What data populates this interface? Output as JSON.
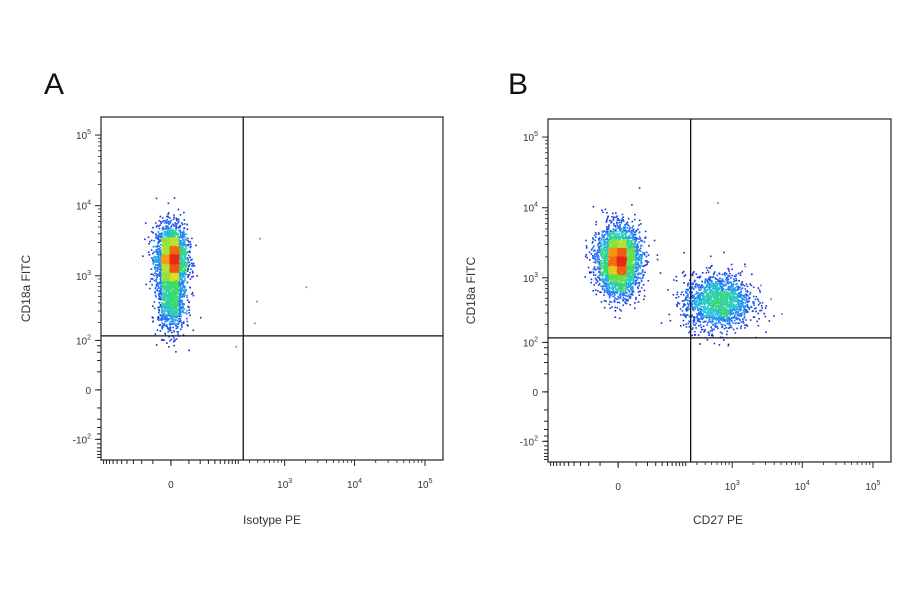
{
  "chart_data": [
    {
      "type": "scatter",
      "panel": "A",
      "title": "",
      "xlabel": "Isotype PE",
      "ylabel": "CD18a FITC",
      "x_ticks": [
        {
          "base": "0",
          "exp": ""
        },
        {
          "base": "10",
          "exp": "3"
        },
        {
          "base": "10",
          "exp": "4"
        },
        {
          "base": "10",
          "exp": "5"
        }
      ],
      "y_ticks": [
        {
          "base": "-10",
          "exp": "2"
        },
        {
          "base": "0",
          "exp": ""
        },
        {
          "base": "10",
          "exp": "2"
        },
        {
          "base": "10",
          "exp": "3"
        },
        {
          "base": "10",
          "exp": "4"
        },
        {
          "base": "10",
          "exp": "5"
        }
      ],
      "scale": "biexponential",
      "gate": {
        "x": 240,
        "y": 120
      },
      "populations": [
        {
          "x": 0,
          "y": 1800,
          "spread_x": 0.25,
          "spread_y": 0.55,
          "count": 2600
        },
        {
          "x": 0,
          "y": 400,
          "spread_x": 0.22,
          "spread_y": 0.5,
          "count": 900
        }
      ],
      "outliers": [
        [
          420,
          3500
        ],
        [
          380,
          430
        ],
        [
          2000,
          700
        ],
        [
          350,
          200
        ],
        [
          180,
          80
        ]
      ]
    },
    {
      "type": "scatter",
      "panel": "B",
      "title": "",
      "xlabel": "CD27 PE",
      "ylabel": "CD18a FITC",
      "x_ticks": [
        {
          "base": "0",
          "exp": ""
        },
        {
          "base": "10",
          "exp": "3"
        },
        {
          "base": "10",
          "exp": "4"
        },
        {
          "base": "10",
          "exp": "5"
        }
      ],
      "y_ticks": [
        {
          "base": "-10",
          "exp": "2"
        },
        {
          "base": "0",
          "exp": ""
        },
        {
          "base": "10",
          "exp": "2"
        },
        {
          "base": "10",
          "exp": "3"
        },
        {
          "base": "10",
          "exp": "4"
        },
        {
          "base": "10",
          "exp": "5"
        }
      ],
      "scale": "biexponential",
      "gate": {
        "x": 240,
        "y": 120
      },
      "populations": [
        {
          "x": 0,
          "y": 1800,
          "spread_x": 0.35,
          "spread_y": 0.55,
          "count": 3000
        },
        {
          "x": 600,
          "y": 450,
          "spread_x": 0.55,
          "spread_y": 0.45,
          "count": 1700
        }
      ],
      "outliers": [
        [
          3500,
          500
        ],
        [
          5000,
          300
        ],
        [
          1500,
          1500
        ],
        [
          2500,
          800
        ],
        [
          600,
          12000
        ]
      ]
    }
  ],
  "panels": {
    "a": {
      "letter": "A"
    },
    "b": {
      "letter": "B"
    }
  }
}
